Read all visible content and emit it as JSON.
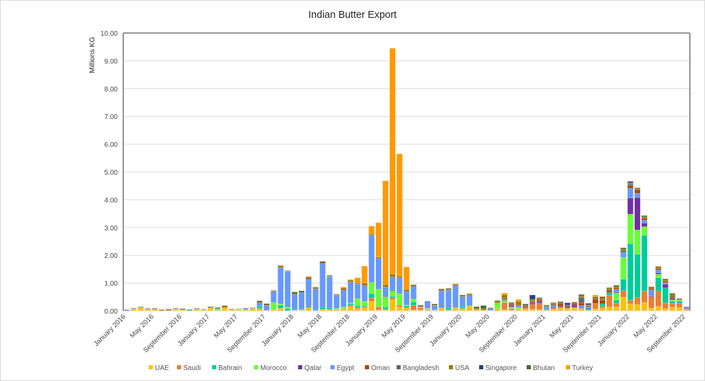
{
  "chart_data": {
    "type": "bar",
    "stacked": true,
    "title": "Indian Butter Export",
    "ylabel": "Millions KG",
    "xlabel": "",
    "ylim": [
      0,
      10
    ],
    "yticks": [
      "0.00",
      "1.00",
      "2.00",
      "3.00",
      "4.00",
      "5.00",
      "6.00",
      "7.00",
      "8.00",
      "9.00",
      "10.00"
    ],
    "grid": true,
    "legend": "bottom",
    "x_tick_labels": [
      "January 2016",
      "May 2016",
      "September 2016",
      "January 2017",
      "May 2017",
      "September 2017",
      "January 2018",
      "May 2018",
      "September 2018",
      "January 2019",
      "May 2019",
      "September 2019",
      "January 2020",
      "May 2020",
      "September 2020",
      "January 2021",
      "May 2021",
      "September 2021",
      "January 2022",
      "May 2022",
      "September 2022"
    ],
    "x_range": [
      "January 2016",
      "September 2022"
    ],
    "x_interval": "monthly",
    "series": [
      {
        "name": "UAE",
        "color": "#FFC000",
        "values": [
          0,
          0.07,
          0.12,
          0.06,
          0.04,
          0,
          0,
          0.05,
          0.05,
          0,
          0.06,
          0.05,
          0.11,
          0.03,
          0.12,
          0.05,
          0.05,
          0.05,
          0.08,
          0.08,
          0.02,
          0.05,
          0.1,
          0,
          0.02,
          0.03,
          0.12,
          0,
          0.06,
          0.05,
          0.03,
          0.08,
          0.15,
          0.08,
          0.11,
          0.34,
          0.04,
          0.05,
          0.4,
          0.15,
          0.11,
          0.03,
          0.03,
          0.03,
          0.03,
          0.1,
          0.03,
          0.1,
          0.08,
          0.17,
          0.03,
          0.03,
          0,
          0.08,
          0.05,
          0.03,
          0.07,
          0.06,
          0.06,
          0.05,
          0.03,
          0.06,
          0.1,
          0.1,
          0.1,
          0.06,
          0.02,
          0.07,
          0.1,
          0.14,
          0.14,
          0.49,
          0.25,
          0.23,
          0.3,
          0.1,
          0.16,
          0.08,
          0.13,
          0.12,
          0.04
        ]
      },
      {
        "name": "Saudi",
        "color": "#ED7D31",
        "values": [
          0,
          0,
          0,
          0,
          0.03,
          0,
          0.03,
          0.02,
          0,
          0,
          0,
          0,
          0,
          0,
          0,
          0,
          0,
          0,
          0,
          0,
          0,
          0,
          0,
          0,
          0,
          0,
          0,
          0,
          0,
          0,
          0.02,
          0,
          0.05,
          0.05,
          0.04,
          0.12,
          0.1,
          0,
          0.07,
          0.06,
          0,
          0.17,
          0.08,
          0,
          0,
          0,
          0,
          0.02,
          0,
          0,
          0.02,
          0,
          0,
          0,
          0.25,
          0.05,
          0,
          0.04,
          0.17,
          0.23,
          0,
          0.05,
          0.03,
          0,
          0.03,
          0.03,
          0,
          0.2,
          0.05,
          0.42,
          0.13,
          0.23,
          0.13,
          0.25,
          0.41,
          0.4,
          0.56,
          0.2,
          0.14,
          0.15,
          0.03
        ]
      },
      {
        "name": "Bahrain",
        "color": "#00CC99",
        "values": [
          0,
          0,
          0.01,
          0,
          0,
          0,
          0,
          0,
          0,
          0.03,
          0,
          0,
          0,
          0.02,
          0,
          0,
          0,
          0,
          0,
          0.08,
          0,
          0,
          0.1,
          0.08,
          0.02,
          0,
          0.04,
          0.04,
          0.08,
          0.06,
          0,
          0.02,
          0.06,
          0.06,
          0.04,
          0.16,
          0,
          0.09,
          0.05,
          0,
          0.07,
          0.12,
          0,
          0.02,
          0,
          0,
          0.08,
          0,
          0.06,
          0.02,
          0,
          0,
          0,
          0,
          0,
          0.02,
          0,
          0,
          0,
          0,
          0.04,
          0,
          0,
          0,
          0,
          0,
          0.05,
          0,
          0.1,
          0.1,
          0.12,
          0.42,
          2.04,
          1.56,
          2.01,
          0,
          0.47,
          0.55,
          0.08,
          0.08,
          0
        ]
      },
      {
        "name": "Morocco",
        "color": "#66FF33",
        "values": [
          0,
          0,
          0,
          0,
          0,
          0,
          0,
          0,
          0,
          0,
          0,
          0,
          0,
          0.03,
          0,
          0,
          0.01,
          0,
          0,
          0,
          0,
          0.25,
          0.05,
          0.05,
          0,
          0.01,
          0,
          0,
          0,
          0,
          0.04,
          0.04,
          0.02,
          0.25,
          0.15,
          0.4,
          0.64,
          0.35,
          0.2,
          0.41,
          0.03,
          0.1,
          0.03,
          0.04,
          0,
          0,
          0,
          0,
          0,
          0,
          0,
          0,
          0,
          0.2,
          0.08,
          0.04,
          0.06,
          0,
          0,
          0,
          0,
          0,
          0,
          0,
          0,
          0,
          0,
          0,
          0,
          0,
          0.25,
          0.78,
          1.06,
          0.87,
          0.31,
          0,
          0.13,
          0,
          0.05,
          0.04,
          0
        ]
      },
      {
        "name": "Qatar",
        "color": "#7030A0",
        "values": [
          0.03,
          0,
          0,
          0,
          0,
          0,
          0,
          0,
          0,
          0,
          0,
          0,
          0,
          0,
          0,
          0,
          0,
          0,
          0,
          0,
          0.02,
          0,
          0,
          0,
          0,
          0,
          0.02,
          0,
          0,
          0,
          0,
          0,
          0,
          0.02,
          0,
          0,
          0,
          0.02,
          0.03,
          0,
          0,
          0,
          0,
          0,
          0,
          0,
          0,
          0,
          0,
          0,
          0,
          0,
          0.02,
          0,
          0.02,
          0.04,
          0,
          0,
          0.04,
          0.06,
          0,
          0.03,
          0.03,
          0.03,
          0.08,
          0,
          0.03,
          0,
          0,
          0,
          0.03,
          0,
          0.58,
          1.17,
          0.13,
          0.03,
          0.05,
          0.13,
          0.06,
          0,
          0.02
        ]
      },
      {
        "name": "Egypt",
        "color": "#6699FF",
        "values": [
          0.02,
          0.03,
          0,
          0.03,
          0.01,
          0,
          0,
          0.03,
          0,
          0,
          0.03,
          0.02,
          0,
          0,
          0,
          0,
          0,
          0.05,
          0.02,
          0.1,
          0.15,
          0.4,
          1.3,
          1.3,
          0.55,
          0.62,
          0.95,
          0.75,
          1.55,
          1.12,
          0.47,
          0.6,
          0.75,
          0.5,
          0.56,
          1.7,
          1.1,
          0.34,
          0.47,
          0.56,
          0.48,
          0.45,
          0,
          0.24,
          0.15,
          0.62,
          0.63,
          0.78,
          0.36,
          0.36,
          0,
          0,
          0.06,
          0,
          0,
          0,
          0.05,
          0,
          0,
          0,
          0.07,
          0.05,
          0,
          0,
          0,
          0.1,
          0.05,
          0,
          0,
          0,
          0.1,
          0.18,
          0.35,
          0.15,
          0.1,
          0.22,
          0.1,
          0.05,
          0,
          0,
          0.04
        ]
      },
      {
        "name": "Oman",
        "color": "#A9480F",
        "values": [
          0,
          0,
          0,
          0,
          0.02,
          0,
          0.03,
          0,
          0,
          0,
          0.01,
          0,
          0,
          0,
          0.05,
          0,
          0,
          0,
          0,
          0.03,
          0.02,
          0.02,
          0.03,
          0,
          0.03,
          0,
          0.05,
          0.03,
          0.04,
          0,
          0.03,
          0.04,
          0.03,
          0,
          0.04,
          0,
          0,
          0,
          0,
          0,
          0,
          0.03,
          0,
          0,
          0.02,
          0.04,
          0,
          0.03,
          0,
          0.03,
          0,
          0,
          0,
          0,
          0,
          0.05,
          0.03,
          0.03,
          0.05,
          0.05,
          0,
          0.04,
          0.1,
          0.05,
          0.06,
          0.1,
          0.04,
          0.15,
          0.13,
          0.08,
          0.05,
          0,
          0.1,
          0.13,
          0.07,
          0.06,
          0.05,
          0.05,
          0,
          0.02,
          0
        ]
      },
      {
        "name": "Bangladesh",
        "color": "#666666",
        "values": [
          0,
          0,
          0,
          0.01,
          0,
          0,
          0.01,
          0,
          0,
          0,
          0,
          0,
          0,
          0,
          0.01,
          0,
          0,
          0,
          0,
          0.02,
          0,
          0,
          0,
          0,
          0,
          0,
          0,
          0,
          0,
          0,
          0,
          0,
          0,
          0.02,
          0,
          0,
          0.03,
          0,
          0,
          0.03,
          0.04,
          0,
          0.05,
          0,
          0,
          0,
          0,
          0,
          0,
          0,
          0,
          0,
          0,
          0,
          0.05,
          0.05,
          0,
          0,
          0.03,
          0.05,
          0.03,
          0.03,
          0.05,
          0.03,
          0,
          0.2,
          0,
          0,
          0,
          0.05,
          0,
          0.07,
          0.05,
          0,
          0,
          0,
          0,
          0,
          0,
          0,
          0.02
        ]
      },
      {
        "name": "USA",
        "color": "#9C7A00",
        "values": [
          0,
          0,
          0,
          0,
          0,
          0.04,
          0,
          0,
          0,
          0,
          0,
          0,
          0.01,
          0,
          0.02,
          0.02,
          0.01,
          0,
          0.01,
          0,
          0,
          0.02,
          0.05,
          0.02,
          0,
          0,
          0.05,
          0.04,
          0,
          0.03,
          0,
          0.05,
          0.05,
          0.03,
          0.06,
          0.04,
          0.03,
          0.09,
          0.1,
          0.04,
          0.04,
          0,
          0,
          0,
          0.01,
          0,
          0.04,
          0.04,
          0.03,
          0.04,
          0.05,
          0.05,
          0,
          0.05,
          0.13,
          0.03,
          0.13,
          0.08,
          0.06,
          0.04,
          0.04,
          0.04,
          0.03,
          0,
          0.05,
          0.05,
          0.03,
          0.05,
          0.08,
          0.05,
          0.05,
          0.05,
          0.05,
          0.04,
          0.06,
          0.06,
          0.08,
          0.05,
          0.12,
          0,
          0
        ]
      },
      {
        "name": "Singapore",
        "color": "#264478",
        "values": [
          0,
          0,
          0,
          0,
          0,
          0,
          0,
          0,
          0,
          0.02,
          0,
          0,
          0,
          0,
          0,
          0,
          0,
          0,
          0,
          0,
          0,
          0,
          0,
          0,
          0,
          0,
          0,
          0,
          0,
          0,
          0,
          0,
          0,
          0,
          0,
          0,
          0,
          0,
          0,
          0,
          0,
          0,
          0,
          0.02,
          0,
          0,
          0,
          0,
          0,
          0,
          0,
          0,
          0,
          0,
          0,
          0,
          0,
          0,
          0.16,
          0,
          0,
          0,
          0,
          0.08,
          0,
          0,
          0.05,
          0.03,
          0.04,
          0,
          0,
          0,
          0.05,
          0,
          0,
          0,
          0,
          0,
          0,
          0,
          0
        ]
      },
      {
        "name": "Bhutan",
        "color": "#43682B",
        "values": [
          0,
          0,
          0.02,
          0,
          0,
          0.01,
          0,
          0,
          0.03,
          0,
          0,
          0,
          0.03,
          0.04,
          0,
          0,
          0.01,
          0,
          0.01,
          0.05,
          0.05,
          0,
          0,
          0,
          0.06,
          0.06,
          0,
          0,
          0.05,
          0.02,
          0,
          0,
          0,
          0,
          0,
          0,
          0,
          0,
          0,
          0,
          0,
          0.04,
          0.02,
          0,
          0.04,
          0.03,
          0.03,
          0,
          0.04,
          0,
          0.05,
          0.11,
          0.03,
          0.04,
          0,
          0,
          0,
          0.04,
          0,
          0,
          0,
          0,
          0,
          0,
          0,
          0.05,
          0,
          0,
          0,
          0,
          0.05,
          0.05,
          0,
          0.03,
          0.04,
          0,
          0,
          0.04,
          0.05,
          0.03,
          0
        ]
      },
      {
        "name": "Turkey",
        "color": "#FF9900",
        "values": [
          0,
          0,
          0,
          0,
          0,
          0,
          0,
          0,
          0,
          0,
          0,
          0,
          0,
          0,
          0,
          0,
          0,
          0,
          0,
          0,
          0,
          0,
          0,
          0,
          0,
          0,
          0,
          0,
          0,
          0,
          0.02,
          0.03,
          0.02,
          0.18,
          0.61,
          0.29,
          1.23,
          3.74,
          8.13,
          4.4,
          0.81,
          0,
          0,
          0,
          0,
          0,
          0,
          0,
          0,
          0,
          0,
          0,
          0,
          0,
          0.06,
          0,
          0.07,
          0,
          0,
          0,
          0,
          0,
          0,
          0,
          0,
          0,
          0,
          0.07,
          0.03,
          0,
          0,
          0,
          0,
          0,
          0,
          0,
          0,
          0,
          0,
          0,
          0
        ]
      }
    ]
  }
}
